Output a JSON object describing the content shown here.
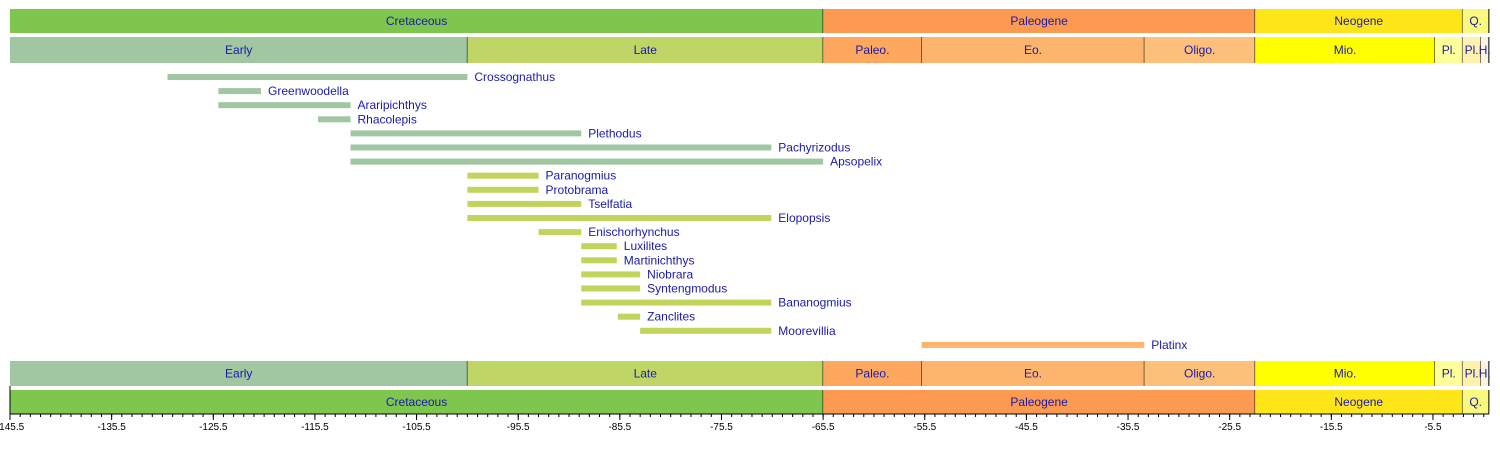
{
  "chart_data": {
    "type": "timeline",
    "xlim": [
      -145.5,
      0
    ],
    "x_ticks": [
      -145.5,
      -135.5,
      -125.5,
      -115.5,
      -105.5,
      -95.5,
      -85.5,
      -75.5,
      -65.5,
      -55.5,
      -45.5,
      -35.5,
      -25.5,
      -15.5,
      -5.5
    ],
    "minor_tick_step": 1,
    "periods": [
      {
        "name": "Cretaceous",
        "start": -145.5,
        "end": -65.5,
        "color": "#7fc64e"
      },
      {
        "name": "Paleogene",
        "start": -65.5,
        "end": -23.0,
        "color": "#fd9a52"
      },
      {
        "name": "Neogene",
        "start": -23.0,
        "end": -2.6,
        "color": "#ffe619"
      },
      {
        "name": "Q.",
        "start": -2.6,
        "end": 0,
        "color": "#f9f97f"
      }
    ],
    "epochs": [
      {
        "name": "Early",
        "start": -145.5,
        "end": -100.5,
        "color": "#a0c6a2"
      },
      {
        "name": "Late",
        "start": -100.5,
        "end": -65.5,
        "color": "#bfd566"
      },
      {
        "name": "Paleo.",
        "start": -65.5,
        "end": -55.8,
        "color": "#fda75f"
      },
      {
        "name": "Eo.",
        "start": -55.8,
        "end": -33.9,
        "color": "#fdb46c"
      },
      {
        "name": "Oligo.",
        "start": -33.9,
        "end": -23.0,
        "color": "#fdc07a"
      },
      {
        "name": "Mio.",
        "start": -23.0,
        "end": -5.3,
        "color": "#ffff00"
      },
      {
        "name": "Pl.",
        "start": -5.3,
        "end": -2.6,
        "color": "#ffff99"
      },
      {
        "name": "Pl.",
        "start": -2.6,
        "end": -0.8,
        "color": "#fff2ae"
      },
      {
        "name": "H.",
        "start": -0.8,
        "end": 0,
        "color": "#fef2e0"
      }
    ],
    "series": [
      {
        "name": "Crossognathus",
        "start": -130.0,
        "end": -100.5,
        "color": "#a0c6a2"
      },
      {
        "name": "Greenwoodella",
        "start": -125.0,
        "end": -120.8,
        "color": "#a0c6a2"
      },
      {
        "name": "Araripichthys",
        "start": -125.0,
        "end": -112.0,
        "color": "#a0c6a2"
      },
      {
        "name": "Rhacolepis",
        "start": -115.2,
        "end": -112.0,
        "color": "#a0c6a2"
      },
      {
        "name": "Plethodus",
        "start": -112.0,
        "end": -89.3,
        "color": "#a0c6a2"
      },
      {
        "name": "Pachyrizodus",
        "start": -112.0,
        "end": -70.6,
        "color": "#a0c6a2"
      },
      {
        "name": "Apsopelix",
        "start": -112.0,
        "end": -65.5,
        "color": "#a0c6a2"
      },
      {
        "name": "Paranogmius",
        "start": -100.5,
        "end": -93.5,
        "color": "#c2d45c"
      },
      {
        "name": "Protobrama",
        "start": -100.5,
        "end": -93.5,
        "color": "#c2d45c"
      },
      {
        "name": "Tselfatia",
        "start": -100.5,
        "end": -89.3,
        "color": "#c2d45c"
      },
      {
        "name": "Elopopsis",
        "start": -100.5,
        "end": -70.6,
        "color": "#c2d45c"
      },
      {
        "name": "Enischorhynchus",
        "start": -93.5,
        "end": -89.3,
        "color": "#c2d45c"
      },
      {
        "name": "Luxilites",
        "start": -89.3,
        "end": -85.8,
        "color": "#c2d45c"
      },
      {
        "name": "Martinichthys",
        "start": -89.3,
        "end": -85.8,
        "color": "#c2d45c"
      },
      {
        "name": "Niobrara",
        "start": -89.3,
        "end": -83.5,
        "color": "#c2d45c"
      },
      {
        "name": "Syntengmodus",
        "start": -89.3,
        "end": -83.5,
        "color": "#c2d45c"
      },
      {
        "name": "Bananogmius",
        "start": -89.3,
        "end": -70.6,
        "color": "#c2d45c"
      },
      {
        "name": "Zanclites",
        "start": -85.7,
        "end": -83.5,
        "color": "#c2d45c"
      },
      {
        "name": "Moorevillia",
        "start": -83.5,
        "end": -70.6,
        "color": "#c2d45c"
      },
      {
        "name": "Platinx",
        "start": -55.8,
        "end": -33.9,
        "color": "#fdb46c"
      }
    ]
  }
}
